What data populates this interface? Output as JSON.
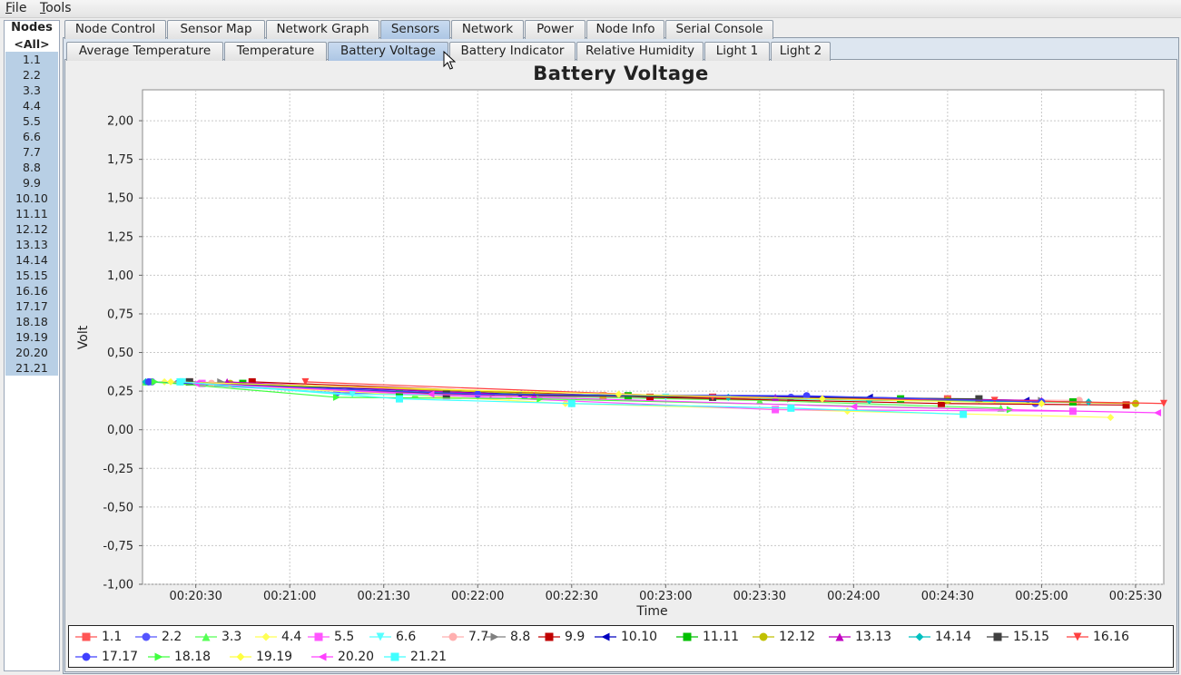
{
  "menubar": {
    "file": {
      "mnemonic": "F",
      "rest": "ile"
    },
    "tools": {
      "mnemonic": "T",
      "rest": "ools"
    }
  },
  "nodes": {
    "title": "Nodes",
    "all_label": "<All>",
    "items": [
      "1.1",
      "2.2",
      "3.3",
      "4.4",
      "5.5",
      "6.6",
      "7.7",
      "8.8",
      "9.9",
      "10.10",
      "11.11",
      "12.12",
      "13.13",
      "14.14",
      "15.15",
      "16.16",
      "17.17",
      "18.18",
      "19.19",
      "20.20",
      "21.21"
    ]
  },
  "main_tabs": [
    "Node Control",
    "Sensor Map",
    "Network Graph",
    "Sensors",
    "Network",
    "Power",
    "Node Info",
    "Serial Console"
  ],
  "main_tab_active": "Sensors",
  "sensor_tabs": [
    "Average Temperature",
    "Temperature",
    "Battery Voltage",
    "Battery Indicator",
    "Relative Humidity",
    "Light 1",
    "Light 2"
  ],
  "sensor_tab_active": "Battery Voltage",
  "icons": {
    "cursor": "arrow-cursor-icon"
  },
  "chart_data": {
    "type": "line",
    "title": "Battery Voltage",
    "xlabel": "Time",
    "ylabel": "Volt",
    "ylim": [
      -1.0,
      2.2
    ],
    "yticks": [
      -1.0,
      -0.75,
      -0.5,
      -0.25,
      0.0,
      0.25,
      0.5,
      0.75,
      1.0,
      1.25,
      1.5,
      1.75,
      2.0
    ],
    "ytick_labels": [
      "-1,00",
      "-0,75",
      "-0,50",
      "-0,25",
      "0,00",
      "0,25",
      "0,50",
      "0,75",
      "1,00",
      "1,25",
      "1,50",
      "1,75",
      "2,00"
    ],
    "xlim": [
      "00:20:13",
      "00:25:39"
    ],
    "xticks": [
      "00:20:30",
      "00:21:00",
      "00:21:30",
      "00:22:00",
      "00:22:30",
      "00:23:00",
      "00:23:30",
      "00:24:00",
      "00:24:30",
      "00:25:00",
      "00:25:30"
    ],
    "grid": true,
    "legend": "bottom",
    "series": [
      {
        "name": "1.1",
        "color": "#ff5555",
        "marker": "square",
        "points": [
          [
            "00:20:28",
            0.31
          ],
          [
            "00:22:40",
            0.22
          ],
          [
            "00:24:30",
            0.2
          ],
          [
            "00:25:10",
            0.18
          ]
        ]
      },
      {
        "name": "2.2",
        "color": "#5555ff",
        "marker": "circle",
        "points": [
          [
            "00:20:16",
            0.31
          ],
          [
            "00:21:15",
            0.24
          ],
          [
            "00:22:15",
            0.22
          ],
          [
            "00:23:40",
            0.21
          ],
          [
            "00:24:58",
            0.17
          ]
        ]
      },
      {
        "name": "3.3",
        "color": "#55ff55",
        "marker": "triangle-up",
        "points": [
          [
            "00:20:14",
            0.31
          ],
          [
            "00:21:40",
            0.23
          ],
          [
            "00:23:30",
            0.19
          ],
          [
            "00:24:47",
            0.14
          ]
        ]
      },
      {
        "name": "4.4",
        "color": "#ffff55",
        "marker": "diamond",
        "points": [
          [
            "00:20:20",
            0.31
          ],
          [
            "00:22:28",
            0.17
          ],
          [
            "00:23:58",
            0.12
          ],
          [
            "00:25:22",
            0.08
          ]
        ]
      },
      {
        "name": "5.5",
        "color": "#ff55ff",
        "marker": "square",
        "points": [
          [
            "00:20:32",
            0.3
          ],
          [
            "00:21:50",
            0.22
          ],
          [
            "00:23:35",
            0.13
          ],
          [
            "00:25:10",
            0.12
          ]
        ]
      },
      {
        "name": "6.6",
        "color": "#55ffff",
        "marker": "triangle-down",
        "points": [
          [
            "00:20:26",
            0.31
          ],
          [
            "00:21:20",
            0.23
          ],
          [
            "00:23:00",
            0.21
          ],
          [
            "00:24:40",
            0.19
          ]
        ]
      },
      {
        "name": "7.7",
        "color": "#ffafaf",
        "marker": "circle",
        "points": [
          [
            "00:20:35",
            0.3
          ],
          [
            "00:22:10",
            0.22
          ],
          [
            "00:23:50",
            0.2
          ],
          [
            "00:25:12",
            0.19
          ]
        ]
      },
      {
        "name": "8.8",
        "color": "#808080",
        "marker": "triangle-right",
        "points": [
          [
            "00:20:38",
            0.31
          ],
          [
            "00:22:05",
            0.23
          ],
          [
            "00:23:40",
            0.2
          ],
          [
            "00:25:00",
            0.19
          ]
        ]
      },
      {
        "name": "9.9",
        "color": "#c00000",
        "marker": "square",
        "points": [
          [
            "00:20:48",
            0.31
          ],
          [
            "00:22:55",
            0.21
          ],
          [
            "00:24:28",
            0.17
          ],
          [
            "00:25:27",
            0.16
          ]
        ]
      },
      {
        "name": "10.10",
        "color": "#0000c0",
        "marker": "triangle-left",
        "points": [
          [
            "00:20:24",
            0.31
          ],
          [
            "00:22:13",
            0.23
          ],
          [
            "00:24:05",
            0.21
          ],
          [
            "00:24:55",
            0.19
          ]
        ]
      },
      {
        "name": "11.11",
        "color": "#00c000",
        "marker": "square",
        "points": [
          [
            "00:20:45",
            0.3
          ],
          [
            "00:21:35",
            0.24
          ],
          [
            "00:22:48",
            0.22
          ],
          [
            "00:24:15",
            0.2
          ],
          [
            "00:25:10",
            0.18
          ]
        ]
      },
      {
        "name": "12.12",
        "color": "#c0c000",
        "marker": "circle",
        "points": [
          [
            "00:20:41",
            0.3
          ],
          [
            "00:22:40",
            0.22
          ],
          [
            "00:24:30",
            0.19
          ],
          [
            "00:25:30",
            0.17
          ]
        ]
      },
      {
        "name": "13.13",
        "color": "#c000c0",
        "marker": "triangle-up",
        "points": [
          [
            "00:20:40",
            0.31
          ],
          [
            "00:22:18",
            0.22
          ],
          [
            "00:23:35",
            0.21
          ],
          [
            "00:25:00",
            0.19
          ]
        ]
      },
      {
        "name": "14.14",
        "color": "#00c0c0",
        "marker": "diamond",
        "points": [
          [
            "00:20:14",
            0.31
          ],
          [
            "00:22:00",
            0.23
          ],
          [
            "00:23:20",
            0.21
          ],
          [
            "00:24:05",
            0.19
          ],
          [
            "00:25:15",
            0.18
          ]
        ]
      },
      {
        "name": "15.15",
        "color": "#404040",
        "marker": "square",
        "points": [
          [
            "00:20:28",
            0.31
          ],
          [
            "00:21:50",
            0.23
          ],
          [
            "00:23:15",
            0.21
          ],
          [
            "00:24:40",
            0.2
          ]
        ]
      },
      {
        "name": "16.16",
        "color": "#ff4040",
        "marker": "triangle-down",
        "points": [
          [
            "00:21:05",
            0.31
          ],
          [
            "00:23:15",
            0.21
          ],
          [
            "00:24:45",
            0.19
          ],
          [
            "00:25:39",
            0.17
          ]
        ]
      },
      {
        "name": "17.17",
        "color": "#4040ff",
        "marker": "circle",
        "points": [
          [
            "00:20:15",
            0.31
          ],
          [
            "00:22:00",
            0.23
          ],
          [
            "00:23:45",
            0.22
          ],
          [
            "00:25:00",
            0.18
          ]
        ]
      },
      {
        "name": "18.18",
        "color": "#40ff40",
        "marker": "triangle-right",
        "points": [
          [
            "00:20:17",
            0.31
          ],
          [
            "00:21:15",
            0.21
          ],
          [
            "00:22:20",
            0.2
          ],
          [
            "00:24:50",
            0.13
          ]
        ]
      },
      {
        "name": "19.19",
        "color": "#ffff40",
        "marker": "diamond",
        "points": [
          [
            "00:20:22",
            0.31
          ],
          [
            "00:22:45",
            0.23
          ],
          [
            "00:23:50",
            0.2
          ],
          [
            "00:25:00",
            0.17
          ]
        ]
      },
      {
        "name": "20.20",
        "color": "#ff40ff",
        "marker": "triangle-left",
        "points": [
          [
            "00:20:30",
            0.3
          ],
          [
            "00:21:45",
            0.23
          ],
          [
            "00:24:00",
            0.15
          ],
          [
            "00:25:37",
            0.11
          ]
        ]
      },
      {
        "name": "21.21",
        "color": "#40ffff",
        "marker": "square",
        "points": [
          [
            "00:20:25",
            0.31
          ],
          [
            "00:21:35",
            0.2
          ],
          [
            "00:22:30",
            0.17
          ],
          [
            "00:23:40",
            0.14
          ],
          [
            "00:24:35",
            0.1
          ]
        ]
      }
    ]
  }
}
